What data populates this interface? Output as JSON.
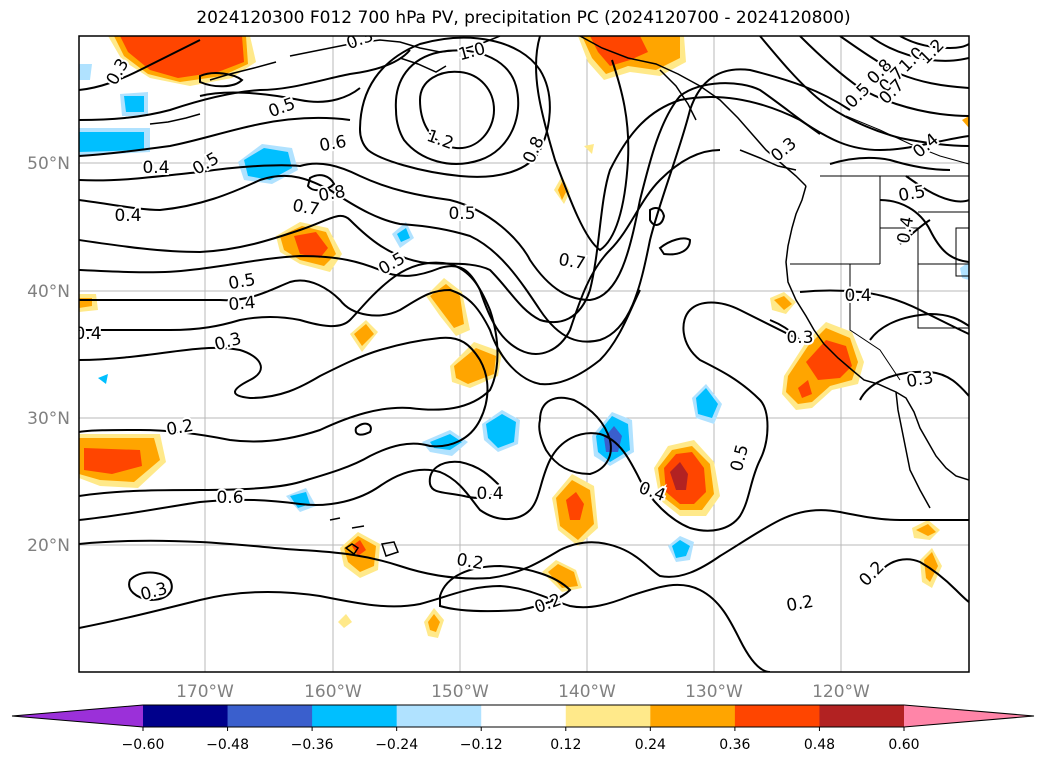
{
  "title": "2024120300 F012 700 hPa PV, precipitation PC (2024120700 - 2024120800)",
  "lon_labels": [
    "170°W",
    "160°W",
    "150°W",
    "140°W",
    "130°W",
    "120°W"
  ],
  "lat_labels": [
    "50°N",
    "40°N",
    "30°N",
    "20°N"
  ],
  "colorbar": {
    "colors": [
      "#9b30d9",
      "#00008b",
      "#3a5fcd",
      "#00bfff",
      "#b0e2ff",
      "#ffffff",
      "#ffe98a",
      "#ffa500",
      "#ff4500",
      "#b22222",
      "#ff85a8"
    ],
    "ticks": [
      "−0.60",
      "−0.48",
      "−0.36",
      "−0.24",
      "−0.12",
      "0.12",
      "0.24",
      "0.36",
      "0.48",
      "0.60"
    ]
  },
  "contour_labels": [
    {
      "text": "1.0"
    },
    {
      "text": "1.2"
    },
    {
      "text": "0.8"
    },
    {
      "text": "0.7"
    },
    {
      "text": "0.6"
    },
    {
      "text": "0.5"
    },
    {
      "text": "0.4"
    },
    {
      "text": "0.3"
    },
    {
      "text": "0.2"
    },
    {
      "text": "0.6"
    },
    {
      "text": "0.4"
    },
    {
      "text": "0.5"
    },
    {
      "text": "0.8"
    },
    {
      "text": "0.7"
    },
    {
      "text": "0.5"
    },
    {
      "text": "0.5"
    },
    {
      "text": "0.4"
    },
    {
      "text": "0.3"
    },
    {
      "text": "0.3"
    },
    {
      "text": "0.2"
    },
    {
      "text": "0.3"
    },
    {
      "text": "0.4"
    },
    {
      "text": "0.2"
    },
    {
      "text": "0.2"
    },
    {
      "text": "0.4"
    },
    {
      "text": "0.5"
    },
    {
      "text": "0.3"
    },
    {
      "text": "0.4"
    },
    {
      "text": "0.3"
    },
    {
      "text": "0.2"
    },
    {
      "text": "0.4"
    },
    {
      "text": "0.5"
    },
    {
      "text": "0.4"
    },
    {
      "text": "0.8"
    },
    {
      "text": "0.7"
    },
    {
      "text": "0.5"
    },
    {
      "text": "1.0"
    },
    {
      "text": "1.2"
    },
    {
      "text": "0.4"
    },
    {
      "text": "0.7"
    },
    {
      "text": "0.3"
    },
    {
      "text": "0.5"
    }
  ]
}
